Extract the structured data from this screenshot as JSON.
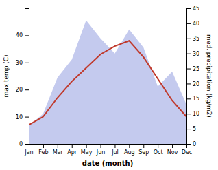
{
  "chart_data": {
    "type": "line",
    "categories": [
      "Jan",
      "Feb",
      "Mar",
      "Apr",
      "May",
      "Jun",
      "Jul",
      "Aug",
      "Sep",
      "Oct",
      "Nov",
      "Dec"
    ],
    "x_label": "date (month)",
    "y_label": "max temp (C)",
    "y2_label": "med. precipitation (kg/m2)",
    "series": [
      {
        "type": "area",
        "axis": "y2",
        "color": "#b0b8e8",
        "values": [
          6,
          10,
          22,
          28,
          41,
          35,
          30,
          38,
          32,
          19,
          24,
          13
        ]
      },
      {
        "type": "line",
        "color": "#c0392b",
        "values": [
          7,
          10,
          17,
          23,
          28,
          33,
          36,
          38,
          32,
          24,
          16,
          10
        ]
      }
    ],
    "ylim": [
      0,
      50
    ],
    "yticks": [
      0,
      10,
      20,
      30,
      40
    ],
    "y2lim": [
      0,
      45
    ],
    "y2ticks": [
      0,
      5,
      10,
      15,
      20,
      25,
      30,
      35,
      40,
      45
    ],
    "grid": false
  }
}
